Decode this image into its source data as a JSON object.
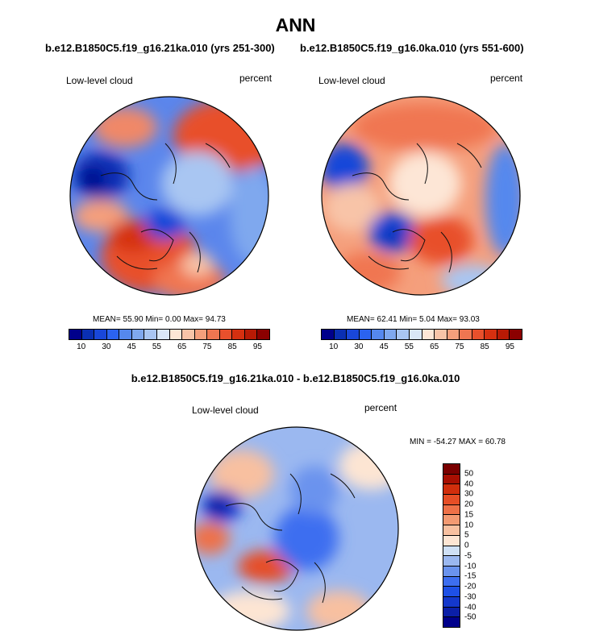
{
  "figure": {
    "title": "ANN",
    "panel_left_title": "b.e12.B1850C5.f19_g16.21ka.010 (yrs 251-300)",
    "panel_right_title": "b.e12.B1850C5.f19_g16.0ka.010 (yrs 551-600)",
    "diff_title": "b.e12.B1850C5.f19_g16.21ka.010 - b.e12.B1850C5.f19_g16.0ka.010"
  },
  "panels": [
    {
      "variable": "Low-level cloud",
      "units": "percent",
      "stats": "MEAN=  55.90  Min=   0.00  Max=  94.73"
    },
    {
      "variable": "Low-level cloud",
      "units": "percent",
      "stats": "MEAN=  62.41  Min=   5.04  Max=  93.03"
    },
    {
      "variable": "Low-level cloud",
      "units": "percent",
      "stats": "MIN = -54.27 MAX =  60.78"
    }
  ],
  "colorbar_abs": {
    "colors": [
      "#00008b",
      "#0a2fb3",
      "#1947d9",
      "#2b63f0",
      "#5588ee",
      "#7fa8ee",
      "#a9c6f2",
      "#d9e7f7",
      "#fde6d6",
      "#f8c4a8",
      "#f59f7c",
      "#f07651",
      "#e8502c",
      "#d63010",
      "#b81a05",
      "#8b0000"
    ],
    "labels": [
      "10",
      "30",
      "45",
      "55",
      "65",
      "75",
      "85",
      "95"
    ]
  },
  "colorbar_diff": {
    "colors": [
      "#00008b",
      "#0b1fa8",
      "#1438cc",
      "#1e50e6",
      "#3d6ef0",
      "#6a93ee",
      "#9bb8f0",
      "#cfe0f5",
      "#fde5d3",
      "#f8c0a0",
      "#f39a72",
      "#ee7148",
      "#e64e26",
      "#d12e0c",
      "#a80f02",
      "#7a0000"
    ],
    "labels": [
      "50",
      "40",
      "30",
      "20",
      "15",
      "10",
      "5",
      "0",
      "-5",
      "-10",
      "-15",
      "-20",
      "-30",
      "-40",
      "-50"
    ]
  }
}
